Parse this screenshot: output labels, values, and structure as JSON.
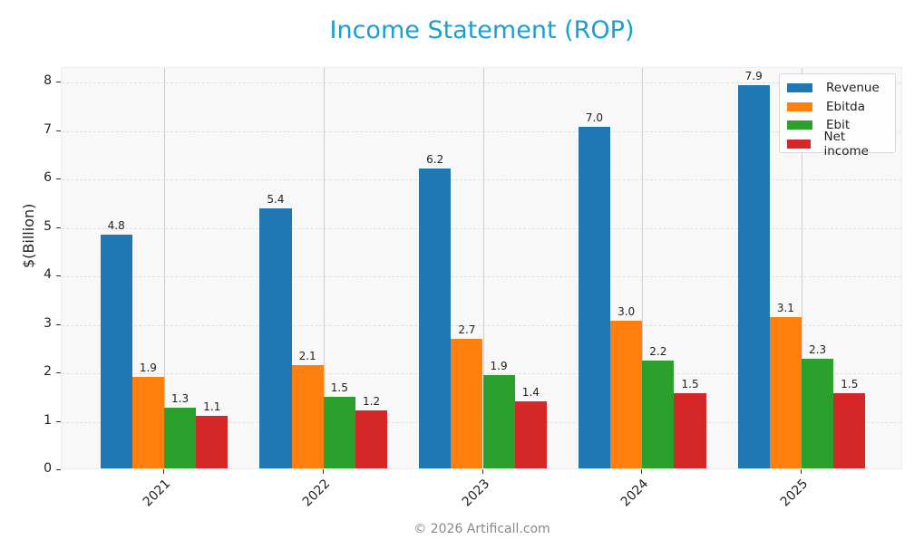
{
  "chart_data": {
    "type": "bar",
    "title": "Income Statement (ROP)",
    "xlabel": "",
    "ylabel": "$(Billion)",
    "ylim": [
      0,
      8.3
    ],
    "yticks": [
      0,
      1,
      2,
      3,
      4,
      5,
      6,
      7,
      8
    ],
    "grid": true,
    "legend_position": "upper right",
    "categories": [
      "2021",
      "2022",
      "2023",
      "2024",
      "2025"
    ],
    "series": [
      {
        "name": "Revenue",
        "color": "#1f77b4",
        "values": [
          4.8,
          5.4,
          6.2,
          7.0,
          7.9
        ],
        "exact": [
          4.83,
          5.37,
          6.18,
          7.04,
          7.9
        ]
      },
      {
        "name": "Ebitda",
        "color": "#ff7f0e",
        "values": [
          1.9,
          2.1,
          2.7,
          3.0,
          3.1
        ],
        "exact": [
          1.88,
          2.13,
          2.67,
          3.04,
          3.13
        ]
      },
      {
        "name": "Ebit",
        "color": "#2ca02c",
        "values": [
          1.3,
          1.5,
          1.9,
          2.2,
          2.3
        ],
        "exact": [
          1.26,
          1.47,
          1.92,
          2.23,
          2.27
        ]
      },
      {
        "name": "Net income",
        "color": "#d62728",
        "values": [
          1.1,
          1.2,
          1.4,
          1.5,
          1.5
        ],
        "exact": [
          1.09,
          1.19,
          1.38,
          1.55,
          1.55
        ]
      }
    ]
  },
  "header": {
    "title": "Income Statement (ROP)"
  },
  "axes": {
    "ylabel": "$(Billion)"
  },
  "footer": {
    "text": "© 2026 Artificall.com"
  }
}
